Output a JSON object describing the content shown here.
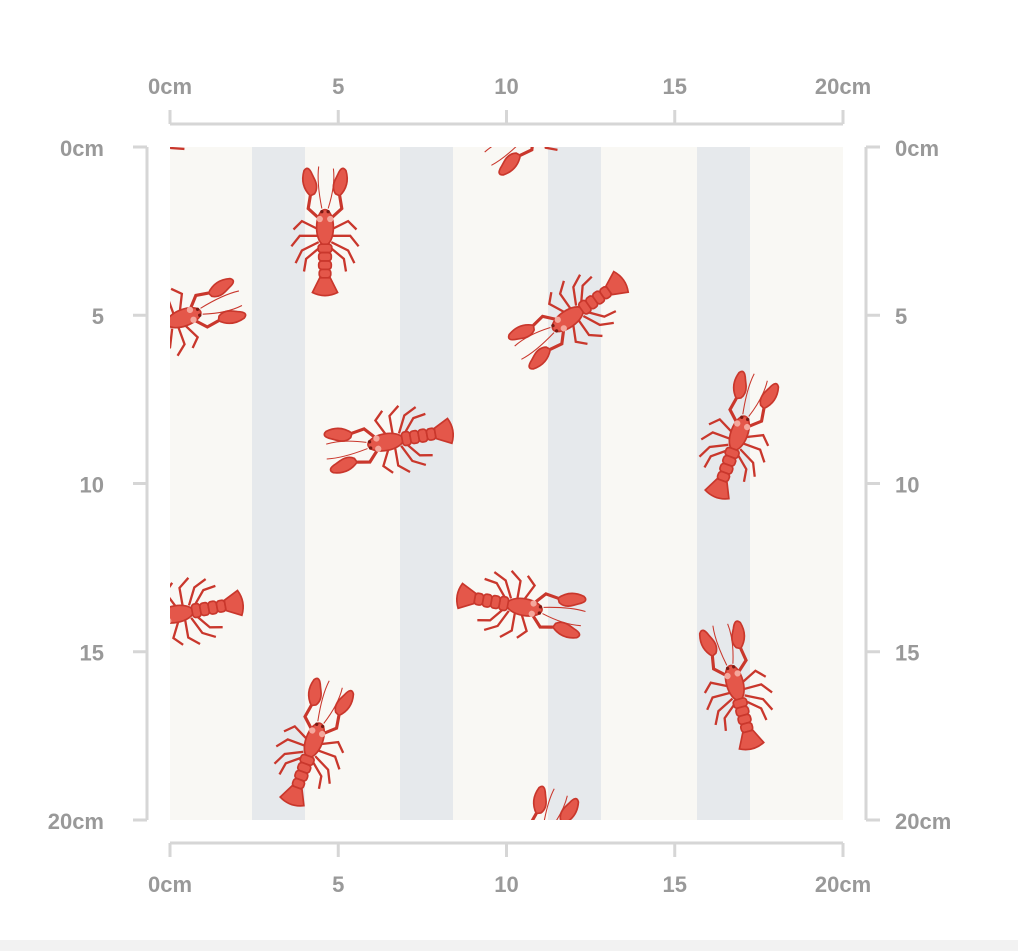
{
  "rulers": {
    "top": [
      "0cm",
      "5",
      "10",
      "15",
      "20cm"
    ],
    "bottom": [
      "0cm",
      "5",
      "10",
      "15",
      "20cm"
    ],
    "left": [
      "0cm",
      "5",
      "10",
      "15",
      "20cm"
    ],
    "right": [
      "0cm",
      "5",
      "10",
      "15",
      "20cm"
    ]
  }
}
